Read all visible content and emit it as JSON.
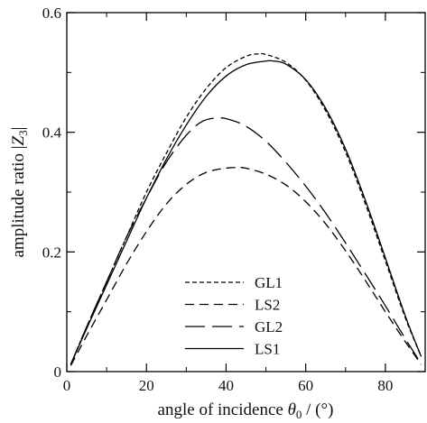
{
  "chart_data": {
    "type": "line",
    "xlabel_prefix": "angle of incidence ",
    "xlabel_symbol": "θ",
    "xlabel_subscript": "0",
    "xlabel_suffix": " / (°)",
    "ylabel_prefix": "amplitude ratio |",
    "ylabel_symbol": "Z",
    "ylabel_subscript": "3",
    "ylabel_suffix": "|",
    "xlim": [
      0,
      90
    ],
    "ylim": [
      0,
      0.6
    ],
    "x_ticks": [
      0,
      20,
      40,
      60,
      80
    ],
    "y_ticks": [
      0,
      0.2,
      0.4,
      0.6
    ],
    "x_tick_labels": [
      "0",
      "20",
      "40",
      "60",
      "80"
    ],
    "y_tick_labels": [
      "0",
      "0.2",
      "0.4",
      "0.6"
    ],
    "legend_position": "bottom-center",
    "series": [
      {
        "name": "GL1",
        "style": "short-dash",
        "x": [
          1,
          5,
          10,
          15,
          20,
          25,
          30,
          35,
          40,
          45,
          48,
          50,
          55,
          60,
          65,
          70,
          75,
          80,
          85,
          89
        ],
        "y": [
          0.012,
          0.075,
          0.15,
          0.225,
          0.3,
          0.365,
          0.425,
          0.473,
          0.508,
          0.527,
          0.531,
          0.53,
          0.517,
          0.487,
          0.436,
          0.367,
          0.28,
          0.185,
          0.09,
          0.025
        ]
      },
      {
        "name": "LS2",
        "style": "medium-dash",
        "x": [
          1,
          5,
          10,
          15,
          20,
          25,
          30,
          35,
          40,
          43,
          45,
          50,
          55,
          60,
          65,
          70,
          75,
          80,
          85,
          89
        ],
        "y": [
          0.01,
          0.06,
          0.12,
          0.18,
          0.234,
          0.28,
          0.313,
          0.333,
          0.34,
          0.341,
          0.34,
          0.33,
          0.312,
          0.284,
          0.247,
          0.202,
          0.152,
          0.1,
          0.05,
          0.012
        ]
      },
      {
        "name": "GL2",
        "style": "long-dash",
        "x": [
          1,
          5,
          10,
          15,
          20,
          25,
          30,
          34,
          38,
          41,
          45,
          50,
          55,
          60,
          65,
          70,
          75,
          80,
          85,
          89
        ],
        "y": [
          0.012,
          0.075,
          0.15,
          0.225,
          0.29,
          0.35,
          0.395,
          0.418,
          0.424,
          0.421,
          0.41,
          0.385,
          0.35,
          0.31,
          0.265,
          0.215,
          0.163,
          0.11,
          0.055,
          0.013
        ]
      },
      {
        "name": "LS1",
        "style": "solid",
        "x": [
          1,
          5,
          10,
          15,
          20,
          25,
          30,
          35,
          40,
          45,
          50,
          52,
          55,
          60,
          65,
          70,
          75,
          80,
          85,
          89
        ],
        "y": [
          0.012,
          0.072,
          0.145,
          0.218,
          0.29,
          0.355,
          0.412,
          0.46,
          0.494,
          0.513,
          0.519,
          0.519,
          0.514,
          0.488,
          0.44,
          0.372,
          0.286,
          0.19,
          0.093,
          0.025
        ]
      }
    ]
  }
}
